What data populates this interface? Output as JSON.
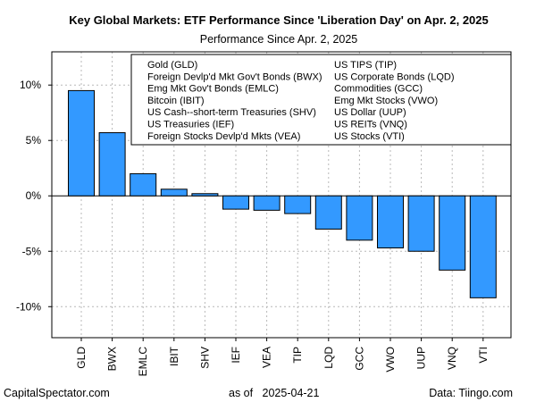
{
  "chart_data": {
    "type": "bar",
    "title": "Key Global Markets: ETF Performance Since 'Liberation Day' on Apr. 2, 2025",
    "subtitle": "Performance Since Apr. 2, 2025",
    "categories": [
      "GLD",
      "BWX",
      "EMLC",
      "IBIT",
      "SHV",
      "IEF",
      "VEA",
      "TIP",
      "LQD",
      "GCC",
      "VWO",
      "UUP",
      "VNQ",
      "VTI"
    ],
    "values": [
      9.5,
      5.7,
      2.0,
      0.6,
      0.2,
      -1.2,
      -1.3,
      -1.6,
      -3.0,
      -4.0,
      -4.7,
      -5.0,
      -6.7,
      -9.2
    ],
    "ylim": [
      -12.8,
      13.0
    ],
    "yticks": [
      10,
      5,
      0,
      -5,
      -10
    ],
    "ytick_labels": [
      "10%",
      "5%",
      "0%",
      "-5%",
      "-10%"
    ],
    "grid": true,
    "bar_color": "#3399ff",
    "legend": {
      "placement": "top-right",
      "entries": [
        "Gold (GLD)",
        "Foreign Devlp'd Mkt Gov't Bonds (BWX)",
        "Emg Mkt Gov't Bonds (EMLC)",
        "Bitcoin (IBIT)",
        "US Cash--short-term Treasuries (SHV)",
        "US Treasuries (IEF)",
        "Foreign Stocks Devlp'd Mkts (VEA)",
        "US TIPS (TIP)",
        "US Corporate Bonds (LQD)",
        "Commodities (GCC)",
        "Emg Mkt Stocks (VWO)",
        "US Dollar (UUP)",
        "US REITs (VNQ)",
        "US Stocks (VTI)"
      ]
    }
  },
  "footer": {
    "left": "CapitalSpectator.com",
    "center": "as of   2025-04-21",
    "right": "Data: Tiingo.com"
  }
}
